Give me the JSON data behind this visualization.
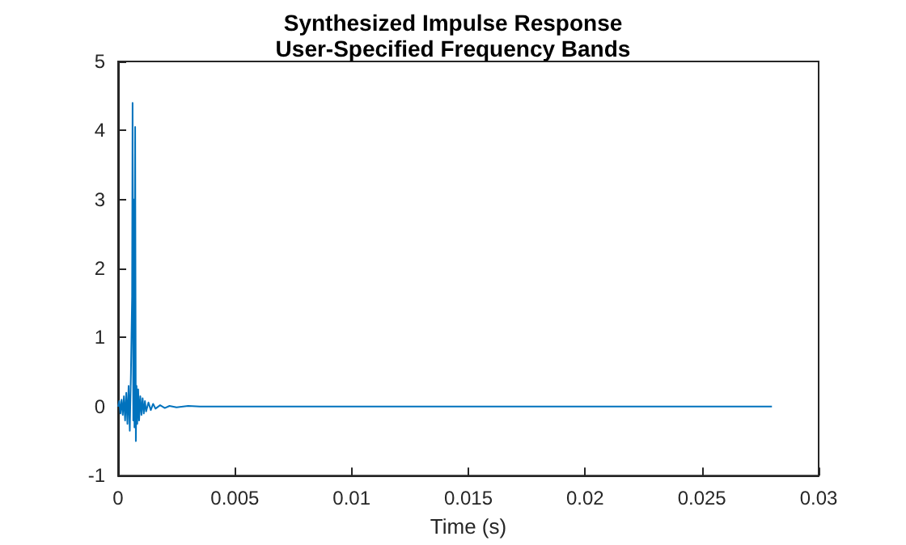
{
  "chart_data": {
    "type": "line",
    "title": "Synthesized Impulse Response",
    "subtitle": "User-Specified Frequency Bands",
    "xlabel": "Time (s)",
    "x": [
      0,
      5e-05,
      0.0001,
      0.00015,
      0.0002,
      0.00025,
      0.0003,
      0.00035,
      0.0004,
      0.00045,
      0.0005,
      0.00055,
      0.0006,
      0.00062,
      0.00065,
      0.00068,
      0.0007,
      0.00073,
      0.00076,
      0.00079,
      0.00082,
      0.00086,
      0.0009,
      0.00095,
      0.001,
      0.00105,
      0.0011,
      0.00115,
      0.0012,
      0.0013,
      0.0014,
      0.0015,
      0.0016,
      0.0018,
      0.002,
      0.0022,
      0.0025,
      0.003,
      0.0035,
      0.004,
      0.028
    ],
    "series": [
      {
        "color": "#0072bd",
        "values": [
          0,
          0.08,
          -0.1,
          0.1,
          -0.12,
          0.15,
          -0.2,
          0.2,
          -0.25,
          0.3,
          -0.35,
          0.5,
          1.6,
          4.4,
          -0.2,
          3.0,
          -0.3,
          4.05,
          -0.5,
          0.3,
          -0.25,
          0.25,
          -0.2,
          0.15,
          -0.12,
          0.12,
          -0.1,
          0.08,
          -0.07,
          0.06,
          -0.05,
          0.04,
          -0.03,
          0.02,
          -0.02,
          0.01,
          -0.01,
          0.01,
          0,
          0,
          0
        ]
      }
    ],
    "xlim": [
      0,
      0.03
    ],
    "xticks": [
      0,
      0.005,
      0.01,
      0.015,
      0.02,
      0.025,
      0.03
    ],
    "ylim": [
      -1,
      5
    ],
    "yticks": [
      -1,
      0,
      1,
      2,
      3,
      4,
      5
    ],
    "grid": false,
    "marker": "none",
    "line_style": "solid"
  }
}
